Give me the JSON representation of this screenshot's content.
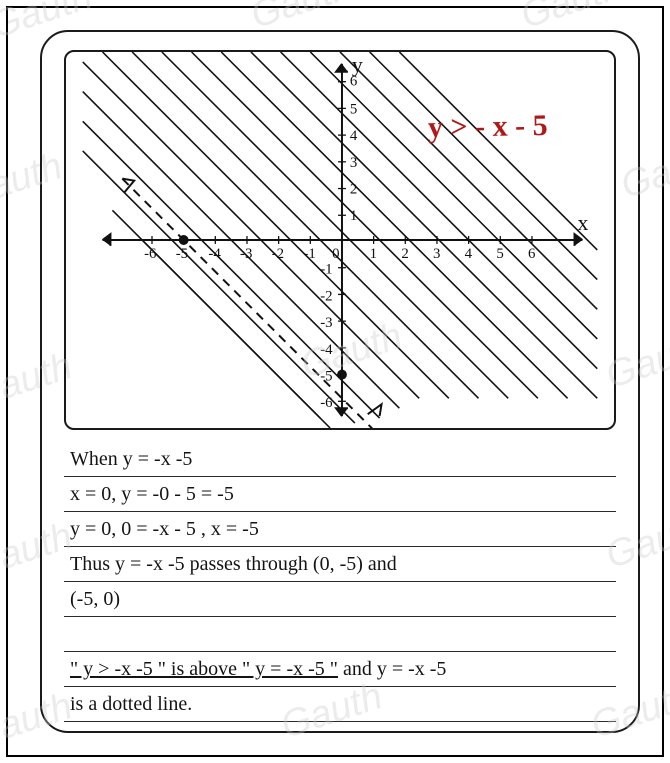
{
  "watermarks": {
    "text": "Gauth",
    "color": "rgba(200,200,200,0.35)",
    "positions": [
      [
        -10,
        -10
      ],
      [
        250,
        -20
      ],
      [
        520,
        -20
      ],
      [
        -40,
        160
      ],
      [
        620,
        150
      ],
      [
        -30,
        360
      ],
      [
        300,
        330
      ],
      [
        605,
        340
      ],
      [
        -30,
        530
      ],
      [
        605,
        520
      ],
      [
        -30,
        700
      ],
      [
        280,
        690
      ],
      [
        590,
        690
      ]
    ]
  },
  "graph": {
    "inequality_label": "y > - x - 5",
    "x_axis_label": "x",
    "y_axis_label": "y",
    "x_range": [
      -6,
      6
    ],
    "y_range": [
      -6,
      6
    ],
    "x_ticks": [
      -6,
      -5,
      -4,
      -3,
      -2,
      -1,
      1,
      2,
      3,
      4,
      5,
      6
    ],
    "y_ticks": [
      -6,
      -5,
      -4,
      -3,
      -2,
      -1,
      1,
      2,
      3,
      4,
      5,
      6
    ],
    "line": {
      "slope": -1,
      "intercept": -5,
      "dashed": true
    },
    "points": [
      {
        "x": -5,
        "y": 0
      },
      {
        "x": 0,
        "y": -5
      }
    ],
    "hatch_color": "#111111",
    "axis_color": "#111111",
    "label_color": "#b01818"
  },
  "lines": {
    "l1": "When  y = -x -5",
    "l2": "x = 0,   y = -0 - 5  =  -5",
    "l3": "y = 0,   0 = -x - 5 ,   x = -5",
    "l4": "Thus  y = -x -5  passes  through  (0, -5)  and",
    "l5": "(-5, 0)",
    "l6": "",
    "l7_a": "\" y > -x -5 \"  is  above  \" y = -x -5 \"",
    "l7_b": "  and  y = -x -5",
    "l8": "is a dotted line."
  }
}
